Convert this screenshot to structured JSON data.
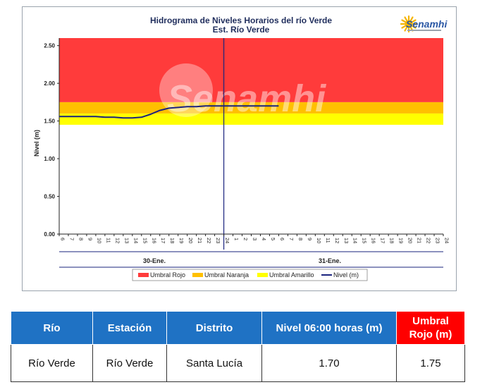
{
  "chart_data": {
    "type": "line",
    "title": "Hidrograma de Niveles Horarios del río Verde",
    "subtitle": "Est. Río Verde",
    "ylabel": "Nivel (m)",
    "ylim": [
      0,
      2.6
    ],
    "yticks": [
      "0.00",
      "0.50",
      "1.00",
      "1.50",
      "2.00",
      "2.50"
    ],
    "xticks": [
      "6",
      "7",
      "8",
      "9",
      "10",
      "11",
      "12",
      "13",
      "14",
      "15",
      "16",
      "17",
      "18",
      "19",
      "20",
      "21",
      "22",
      "23",
      "24",
      "1",
      "2",
      "3",
      "4",
      "5",
      "6",
      "7",
      "8",
      "9",
      "10",
      "11",
      "12",
      "13",
      "14",
      "15",
      "16",
      "17",
      "18",
      "19",
      "20",
      "21",
      "22",
      "23",
      "24"
    ],
    "day_labels": [
      "30-Ene.",
      "31-Ene."
    ],
    "thresholds": [
      {
        "name": "Umbral Amarillo",
        "from": 1.45,
        "to": 1.6,
        "color": "#ffff00"
      },
      {
        "name": "Umbral Naranja",
        "from": 1.6,
        "to": 1.75,
        "color": "#ffc000"
      },
      {
        "name": "Umbral Rojo",
        "from": 1.75,
        "to": 2.6,
        "color": "#ff3b3b"
      }
    ],
    "legend": [
      "Umbral Rojo",
      "Umbral Naranja",
      "Umbral Amarillo",
      "Nivel (m)"
    ],
    "legend_position": "bottom",
    "series": [
      {
        "name": "Nivel (m)",
        "color": "#1a237e",
        "values": [
          1.56,
          1.56,
          1.56,
          1.56,
          1.56,
          1.55,
          1.55,
          1.54,
          1.54,
          1.55,
          1.59,
          1.64,
          1.67,
          1.68,
          1.69,
          1.69,
          1.7,
          1.7,
          1.7,
          1.7,
          1.7,
          1.7,
          1.7,
          1.7,
          1.7
        ]
      }
    ],
    "marker_index": 18,
    "logo_text": "Senamhi",
    "watermark_text": "Senamhi"
  },
  "table": {
    "headers": [
      "Río",
      "Estación",
      "Distrito",
      "Nivel  06:00 horas (m)",
      "Umbral Rojo (m)"
    ],
    "row": [
      "Río Verde",
      "Río Verde",
      "Santa Lucía",
      "1.70",
      "1.75"
    ]
  }
}
